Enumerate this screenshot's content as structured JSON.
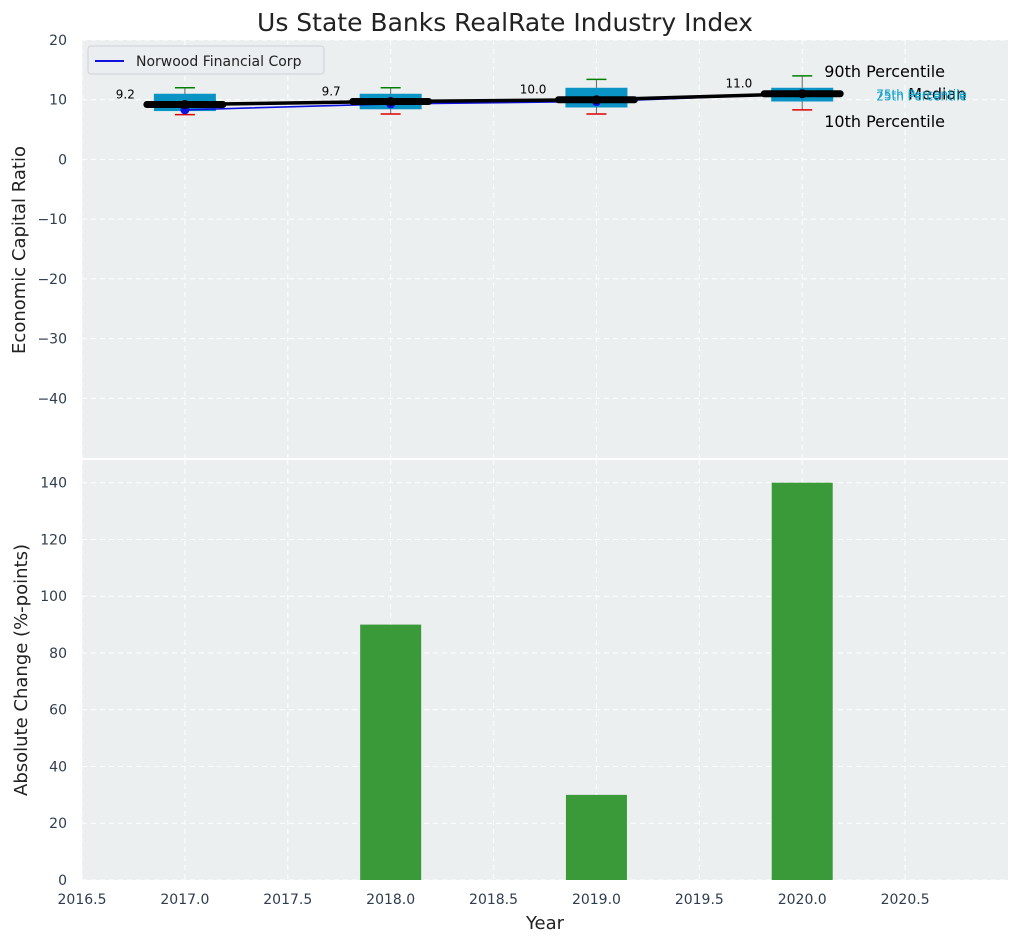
{
  "title": "Us State Banks RealRate Industry Index",
  "colors": {
    "plot_bg": "#ebeff0",
    "box_fill": "#0a94c6",
    "company_line": "#1010e0",
    "median_line": "#000000",
    "p90_whisker": "#008000",
    "p10_whisker": "#e00000",
    "bar": "#3a9a3a",
    "quartile_label": "#17a2c8"
  },
  "chart_data": [
    {
      "type": "box",
      "ylabel": "Economic Capital Ratio",
      "xlim": [
        2016.5,
        2021.0
      ],
      "ylim": [
        -50,
        20
      ],
      "yticks": [
        20,
        10,
        0,
        -10,
        -20,
        -30,
        -40
      ],
      "ytick_labels": [
        "20",
        "10",
        "0",
        "−10",
        "−20",
        "−30",
        "−40"
      ],
      "legend": {
        "position": "top-left",
        "entries": [
          "Norwood Financial Corp"
        ]
      },
      "years": [
        2017,
        2018,
        2019,
        2020
      ],
      "p10": [
        7.5,
        7.6,
        7.6,
        8.3
      ],
      "q1": [
        8.1,
        8.4,
        8.7,
        9.7
      ],
      "median": [
        9.2,
        9.7,
        10.0,
        11.0
      ],
      "q3": [
        11.0,
        11.0,
        12.0,
        12.0
      ],
      "p90": [
        12.0,
        12.0,
        13.4,
        14.0
      ],
      "company": {
        "name": "Norwood Financial Corp",
        "values": [
          8.3,
          9.3,
          9.7,
          11.0
        ]
      },
      "median_labels": [
        "9.2",
        "9.7",
        "10.0",
        "11.0"
      ],
      "annotations": {
        "p90": "90th Percentile",
        "median": "Median",
        "p10": "10th Percentile",
        "q3": "75th Percentile",
        "q1": "25th Percentile"
      }
    },
    {
      "type": "bar",
      "xlabel": "Year",
      "ylabel": "Absolute Change (%-points)",
      "xlim": [
        2016.5,
        2021.0
      ],
      "ylim": [
        0,
        148
      ],
      "yticks": [
        0,
        20,
        40,
        60,
        80,
        100,
        120,
        140
      ],
      "xticks": [
        2016.5,
        2017.0,
        2017.5,
        2018.0,
        2018.5,
        2019.0,
        2019.5,
        2020.0,
        2020.5
      ],
      "xtick_labels": [
        "2016.5",
        "2017.0",
        "2017.5",
        "2018.0",
        "2018.5",
        "2019.0",
        "2019.5",
        "2020.0",
        "2020.5"
      ],
      "x": [
        2018,
        2019,
        2020
      ],
      "values": [
        90,
        30,
        140
      ]
    }
  ]
}
